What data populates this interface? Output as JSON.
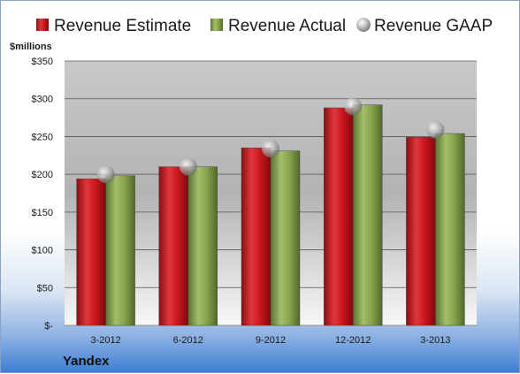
{
  "chart_data": {
    "type": "bar",
    "unit_label": "$millions",
    "company": "Yandex",
    "categories": [
      "3-2012",
      "6-2012",
      "9-2012",
      "12-2012",
      "3-2013"
    ],
    "series": [
      {
        "name": "Revenue Estimate",
        "kind": "bar",
        "color": "#c0161c",
        "values": [
          194,
          210,
          235,
          288,
          249
        ]
      },
      {
        "name": "Revenue Actual",
        "kind": "bar",
        "color": "#7f9a44",
        "values": [
          198,
          210,
          231,
          292,
          254
        ]
      },
      {
        "name": "Revenue GAAP",
        "kind": "marker",
        "color": "#b8b8b8",
        "values": [
          200,
          210,
          234,
          290,
          259
        ]
      }
    ],
    "ylim": [
      0,
      350
    ],
    "yticks": [
      0,
      50,
      100,
      150,
      200,
      250,
      300,
      350
    ],
    "ytick_labels": [
      "$-",
      "$50",
      "$100",
      "$150",
      "$200",
      "$250",
      "$300",
      "$350"
    ],
    "grid": true,
    "legend_position": "top"
  }
}
